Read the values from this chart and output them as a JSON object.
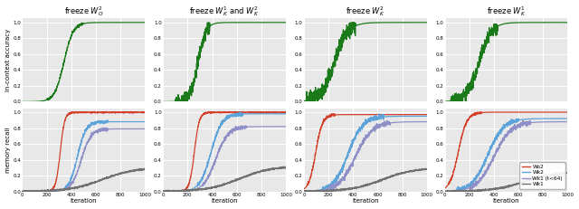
{
  "titles": [
    "freeze $W_O^2$",
    "freeze $W_K^1$ and $W_K^2$",
    "freeze $W_K^2$",
    "freeze $W_K^1$"
  ],
  "green_color": "#1a7a1a",
  "red_color": "#d43f2a",
  "blue_color": "#5ba3d9",
  "purple_color": "#9090c8",
  "gray_color": "#707070",
  "bg_color": "#e8e8e8",
  "ylabel_top": "in-context accuracy",
  "ylabel_bottom": "memory recall",
  "xlabel": "iteration",
  "legend_labels": [
    "Wo2",
    "Wk2",
    "Wk1 (t<64)",
    "Wk1"
  ],
  "xlim": [
    0,
    1000
  ],
  "xticks": [
    0,
    200,
    400,
    600,
    800,
    1000
  ],
  "yticks": [
    0.0,
    0.2,
    0.4,
    0.6,
    0.8,
    1.0
  ],
  "seed": 42
}
